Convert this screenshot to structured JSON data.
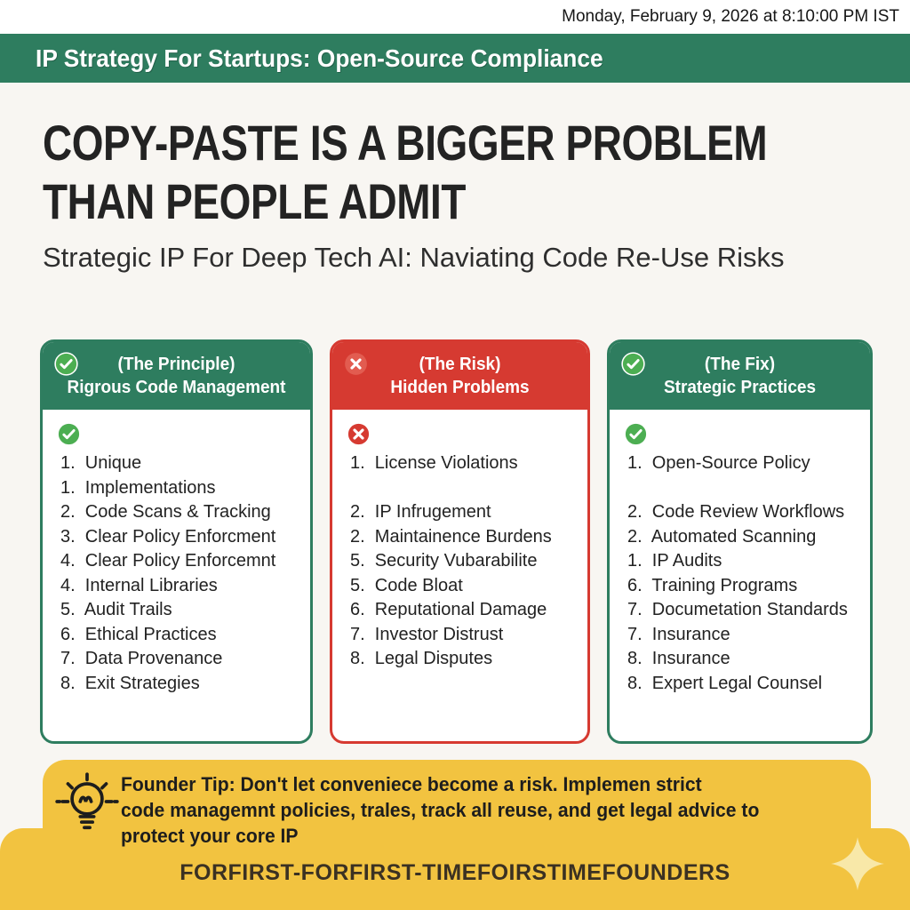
{
  "timestamp": "Monday, February 9, 2026 at 8:10:00 PM IST",
  "header": {
    "title": "IP Strategy For Startups: Open-Source Compliance"
  },
  "hero": {
    "title_line1": "COPY-PASTE IS A BIGGER PROBLEM",
    "title_line2": "THAN PEOPLE ADMIT",
    "subtitle": "Strategic IP For Deep Tech AI: Naviating Code Re-Use Risks"
  },
  "cards": [
    {
      "tone": "green",
      "icon": "check-icon",
      "kicker": "(The Principle)",
      "title": "Rigrous Code Management",
      "items": [
        "1.  Unique",
        "1.  Implementations",
        "2.  Code Scans & Tracking",
        "3.  Clear Policy Enforcment",
        "4.  Clear Policy Enforcemnt",
        "4.  Internal Libraries",
        "5.  Audit Trails",
        "6.  Ethical Practices",
        "7.  Data Provenance",
        "8.  Exit Strategies"
      ]
    },
    {
      "tone": "red",
      "icon": "cross-icon",
      "kicker": "(The Risk)",
      "title": "Hidden Problems",
      "items": [
        "1.  License Violations",
        "",
        "2.  IP Infrugement",
        "2.  Maintainence Burdens",
        "5.  Security Vubarabilite",
        "5.  Code Bloat",
        "6.  Reputational Damage",
        "7.  Investor Distrust",
        "8.  Legal Disputes"
      ]
    },
    {
      "tone": "green",
      "icon": "check-icon",
      "kicker": "(The Fix)",
      "title": "Strategic Practices",
      "items": [
        "1.  Open-Source Policy",
        "",
        "2.  Code Review Workflows",
        "2.  Automated Scanning",
        "1.  IP Audits",
        "6.  Training Programs",
        "7.  Documetation Standards",
        "7.  Insurance",
        "8.  Insurance",
        "8.  Expert Legal Counsel"
      ]
    }
  ],
  "tip": {
    "icon": "lightbulb-icon",
    "lines": [
      "Founder Tip: Don't let conveniece become a risk. Implemen strict",
      "code managemnt policies, trales, track all reuse, and get legal advice to",
      "protect your core IP"
    ]
  },
  "footer": {
    "handle": "FORFIRST-FORFIRST-TIMEFOIRSTIMEFOUNDERS",
    "icon": "sparkle-icon"
  },
  "colors": {
    "green": "#2e7d5f",
    "green_light": "#4cae52",
    "red": "#d63a31",
    "red_light": "#e25c50",
    "yellow": "#f2c340",
    "sparkle": "#f8e8a8",
    "bg": "#f8f6f2"
  }
}
